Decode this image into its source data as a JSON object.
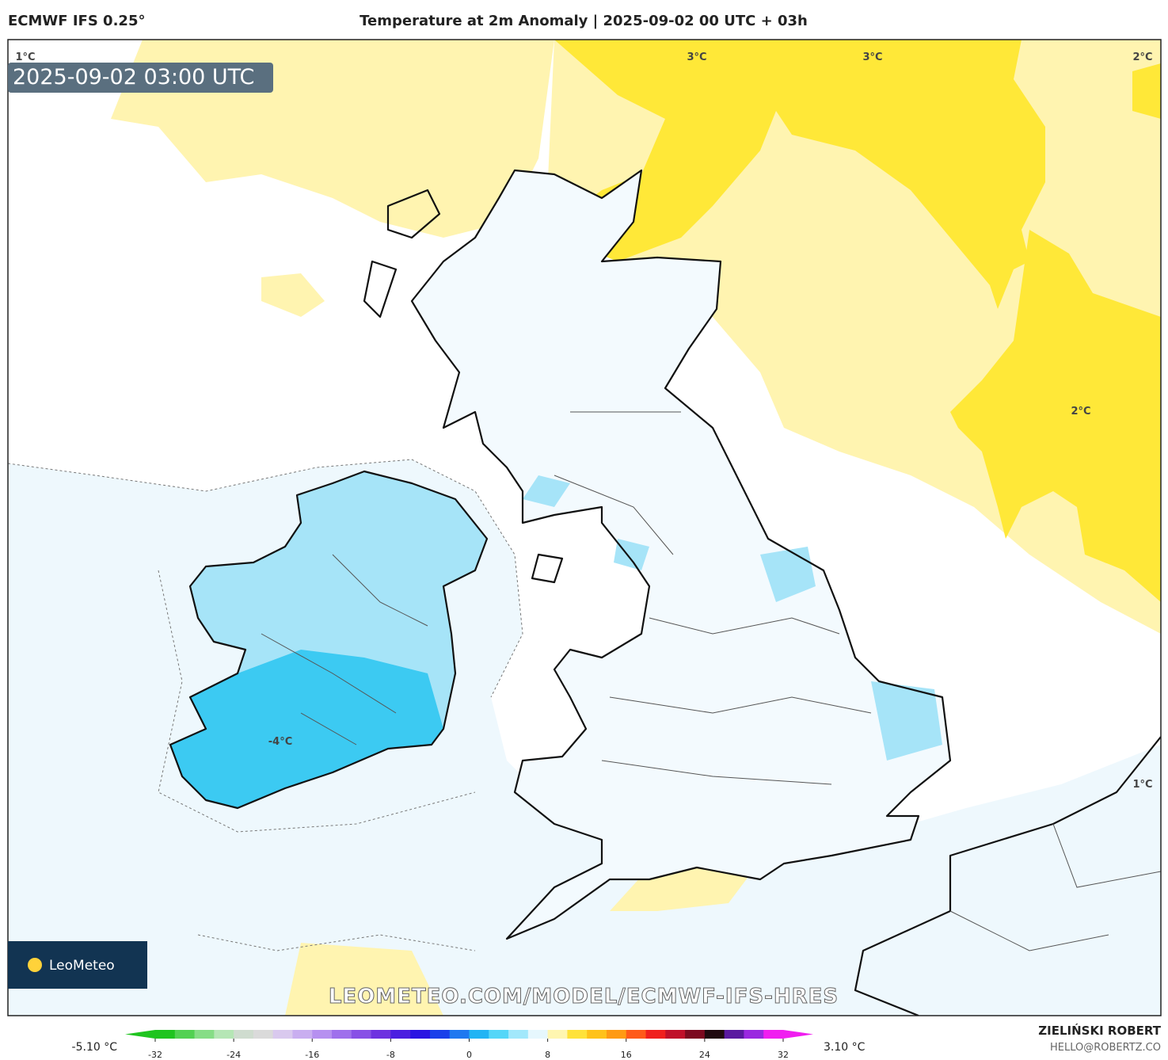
{
  "header": {
    "model": "ECMWF IFS 0.25°",
    "title": "Temperature at 2m Anomaly | 2025-09-02 00 UTC + 03h"
  },
  "map": {
    "timestamp": "2025-09-02 03:00 UTC",
    "watermark": "LEOMETEO.COM/MODEL/ECMWF-IFS-HRES",
    "logo": "LeoMeteo",
    "contour_labels": [
      "1°C",
      "3°C",
      "3°C",
      "2°C",
      "2°C",
      "-4°C",
      "1°C"
    ]
  },
  "colorbar": {
    "min_label": "-5.10 °C",
    "max_label": "3.10 °C",
    "ticks": [
      -32,
      -24,
      -16,
      -8,
      0,
      8,
      16,
      24,
      32
    ],
    "colors": [
      "#1fc41f",
      "#52d152",
      "#86dd86",
      "#b5e6b5",
      "#cfdccf",
      "#dadada",
      "#d9c9ee",
      "#c9aef0",
      "#b690f0",
      "#9f70ec",
      "#8850e6",
      "#6e32e0",
      "#4b1ee0",
      "#2a14e2",
      "#1a40ea",
      "#1f78f0",
      "#22b4f4",
      "#55d6f8",
      "#a2e8fb",
      "#e6f7fd",
      "#fff6b0",
      "#ffe23a",
      "#ffc21a",
      "#ff9a14",
      "#ff5a1a",
      "#f0201e",
      "#c0102a",
      "#7c0a20",
      "#200a10",
      "#5a1aa0",
      "#9a28e0",
      "#f01ef0"
    ]
  },
  "footer": {
    "author": "ZIELIŃSKI ROBERT",
    "email": "HELLO@ROBERTZ.CO"
  }
}
